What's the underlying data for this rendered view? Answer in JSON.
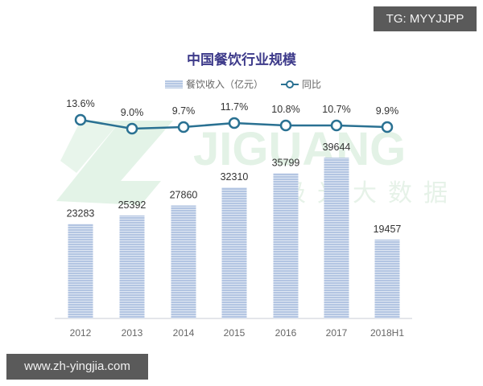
{
  "badges": {
    "tg": "TG: MYYJJPP",
    "site": "www.zh-yingjia.com"
  },
  "watermark": {
    "text_en": "JIGUANG",
    "text_cn": "极光大数据"
  },
  "chart_data": {
    "type": "bar",
    "title": "中国餐饮行业规模",
    "categories": [
      "2012",
      "2013",
      "2014",
      "2015",
      "2016",
      "2017",
      "2018H1"
    ],
    "series": [
      {
        "name": "餐饮收入（亿元）",
        "type": "bar",
        "values": [
          23283,
          25392,
          27860,
          32310,
          35799,
          39644,
          19457
        ],
        "color": "#b5c7e3"
      },
      {
        "name": "同比",
        "type": "line",
        "values": [
          13.6,
          9.0,
          9.7,
          11.7,
          10.8,
          10.7,
          9.9
        ],
        "labels": [
          "13.6%",
          "9.0%",
          "9.7%",
          "11.7%",
          "10.8%",
          "10.7%",
          "9.9%"
        ],
        "color": "#2a7192"
      }
    ],
    "legend": [
      "餐饮收入（亿元）",
      "同比"
    ],
    "legend_position": "top",
    "xlabel": "",
    "ylabel": "",
    "grid": false
  }
}
